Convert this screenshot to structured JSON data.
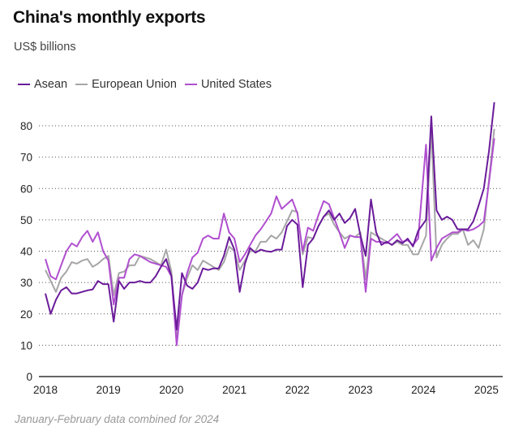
{
  "title": "China's monthly exports",
  "subtitle": "US$ billions",
  "note": "January-February data combined for 2024",
  "legend": [
    {
      "name": "Asean",
      "color": "#6a1b9a"
    },
    {
      "name": "European Union",
      "color": "#a6a6a6"
    },
    {
      "name": "United States",
      "color": "#b04fcf"
    }
  ],
  "chart_data": {
    "type": "line",
    "title": "China's monthly exports",
    "ylabel": "US$ billions",
    "xlabel": "",
    "ylim": [
      0,
      85
    ],
    "yticks": [
      0,
      10,
      20,
      30,
      40,
      50,
      60,
      70,
      80
    ],
    "xticks": [
      "2018",
      "2019",
      "2020",
      "2021",
      "2022",
      "2023",
      "2024",
      "2025"
    ],
    "grid": true,
    "legend_position": "top-left",
    "x_start": "2018-01",
    "x_note": "Monthly points Jan 2018 - Feb 2025; Jan-Feb 2024 combined into one point",
    "series": [
      {
        "name": "Asean",
        "color": "#6a1b9a",
        "values": [
          26.5,
          20,
          24.5,
          27.5,
          28.5,
          26.5,
          26.5,
          27,
          27.5,
          27.8,
          30.5,
          29.5,
          29.5,
          17.5,
          30.5,
          28,
          30,
          30,
          30.5,
          30,
          30,
          32,
          35,
          37.5,
          32,
          15,
          33,
          29,
          28,
          30,
          34.5,
          34,
          34.5,
          34.5,
          38.5,
          44.5,
          40.5,
          27,
          36,
          41,
          39.5,
          40.5,
          40,
          39.8,
          40.5,
          40.5,
          48,
          50,
          48.5,
          28.5,
          42,
          44,
          48,
          51,
          53,
          50,
          52,
          49,
          50.5,
          53.5,
          45,
          38.5,
          56.5,
          46,
          42,
          43,
          42,
          43.5,
          42.5,
          44,
          41.5,
          46.5,
          50,
          83,
          53,
          50,
          51,
          50,
          47,
          47,
          47,
          49.5,
          54.5,
          60,
          72,
          87.5
        ]
      },
      {
        "name": "European Union",
        "color": "#a6a6a6",
        "values": [
          34,
          30.5,
          27,
          31.5,
          33.5,
          36.5,
          36,
          37,
          37.5,
          35,
          36,
          37.5,
          38.5,
          26,
          33,
          33.5,
          35.5,
          35.5,
          38.5,
          38,
          37.5,
          36.5,
          35.5,
          40.5,
          33.5,
          12,
          26,
          31.5,
          35.5,
          34,
          37,
          36,
          35,
          34,
          36.5,
          41.5,
          40,
          34,
          37,
          40,
          40,
          43,
          43,
          45,
          44,
          46,
          49.5,
          53,
          52.5,
          39,
          44.5,
          44,
          48,
          51,
          52,
          48.5,
          46,
          44,
          45,
          44.5,
          46,
          31,
          46,
          45,
          44,
          43,
          42,
          43,
          42,
          42,
          39,
          39,
          45,
          79,
          38,
          42,
          44,
          45.5,
          45.5,
          47,
          42,
          43.5,
          41,
          47,
          63,
          79
        ]
      },
      {
        "name": "United States",
        "color": "#b04fcf",
        "values": [
          37.5,
          32,
          31,
          35.5,
          40,
          42.5,
          41.5,
          44.5,
          46.5,
          43,
          46,
          40,
          37,
          23,
          31.5,
          31.5,
          37.5,
          39,
          38.5,
          37.5,
          36.5,
          36,
          35.5,
          35,
          32,
          10,
          26,
          33,
          38,
          39.5,
          44,
          45,
          44,
          44,
          52,
          46,
          44,
          36.5,
          39,
          42,
          45,
          47,
          49.5,
          52,
          57.5,
          53.5,
          55,
          56.5,
          52,
          40,
          47.5,
          46.5,
          51.5,
          56,
          55,
          50.5,
          46,
          41,
          45,
          44.5,
          44.5,
          27,
          44,
          43,
          43,
          42.5,
          44,
          45.5,
          43,
          43.5,
          42,
          44,
          74,
          37,
          41,
          44,
          45,
          46,
          46,
          47,
          46.5,
          47,
          48,
          49.5,
          62,
          76
        ]
      }
    ]
  }
}
